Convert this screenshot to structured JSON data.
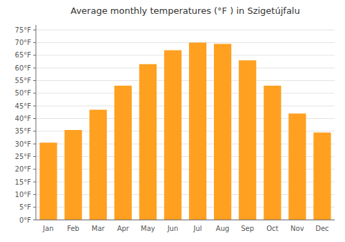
{
  "chart_data": {
    "type": "bar",
    "title": "Average monthly temperatures (°F ) in Szigetújfalu",
    "categories": [
      "Jan",
      "Feb",
      "Mar",
      "Apr",
      "May",
      "Jun",
      "Jul",
      "Aug",
      "Sep",
      "Oct",
      "Nov",
      "Dec"
    ],
    "values": [
      30.5,
      35.5,
      43.5,
      53.0,
      61.5,
      67.0,
      70.0,
      69.5,
      63.0,
      53.0,
      42.0,
      34.5
    ],
    "color": "#FFA020",
    "ylim": [
      0,
      77
    ],
    "yticks": [
      {
        "value": 0,
        "label": "0°F"
      },
      {
        "value": 5,
        "label": "5°F"
      },
      {
        "value": 10,
        "label": "10°F"
      },
      {
        "value": 15,
        "label": "15°F"
      },
      {
        "value": 20,
        "label": "20°F"
      },
      {
        "value": 25,
        "label": "25°F"
      },
      {
        "value": 30,
        "label": "30°F"
      },
      {
        "value": 35,
        "label": "35°F"
      },
      {
        "value": 40,
        "label": "40°F"
      },
      {
        "value": 45,
        "label": "45°F"
      },
      {
        "value": 50,
        "label": "50°F"
      },
      {
        "value": 55,
        "label": "55°F"
      },
      {
        "value": 60,
        "label": "60°F"
      },
      {
        "value": 65,
        "label": "65°F"
      },
      {
        "value": 70,
        "label": "70°F"
      },
      {
        "value": 75,
        "label": "75°F"
      }
    ],
    "grid": true
  }
}
